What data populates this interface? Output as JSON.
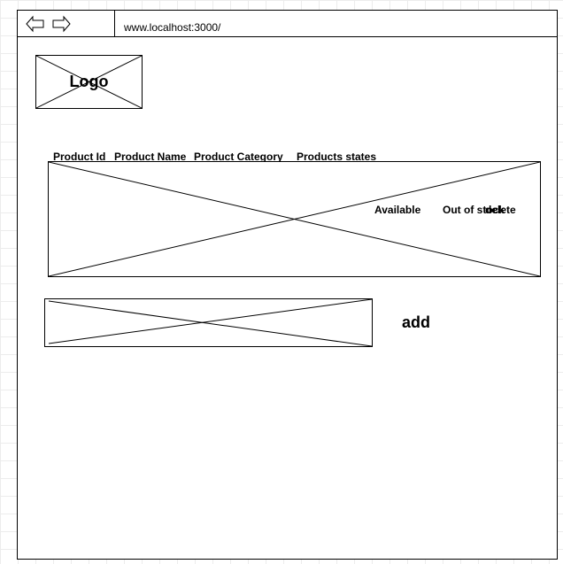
{
  "browser": {
    "url": "www.localhost:3000/",
    "back_icon": "back-arrow-icon",
    "forward_icon": "forward-arrow-icon"
  },
  "logo": {
    "text": "Logo"
  },
  "table": {
    "headers": [
      "Product Id",
      "Product Name",
      "Product Category",
      "Products states"
    ],
    "row_actions": [
      "Available",
      "Out of stock",
      "delete"
    ]
  },
  "form": {
    "add_label": "add"
  }
}
